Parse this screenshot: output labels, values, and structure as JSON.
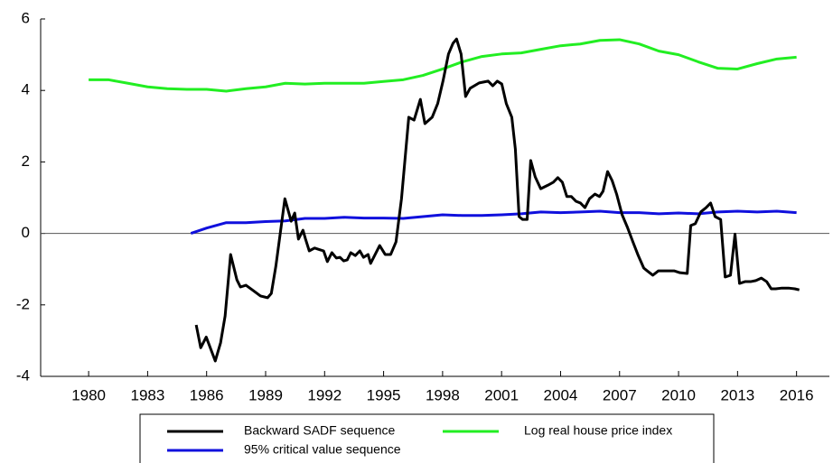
{
  "chart_data": {
    "type": "line",
    "xlim": [
      1977.56,
      2017.67
    ],
    "ylim": [
      -4,
      6
    ],
    "xticks": [
      1980,
      1983,
      1986,
      1989,
      1992,
      1995,
      1998,
      2001,
      2004,
      2007,
      2010,
      2013,
      2016
    ],
    "yticks": [
      -4,
      -2,
      0,
      2,
      4,
      6
    ],
    "zero_line": true,
    "series": [
      {
        "name": "Backward SADF sequence",
        "color": "#000000",
        "x": [
          1985.47,
          1985.7,
          1985.98,
          1986.44,
          1986.71,
          1986.94,
          1987.22,
          1987.54,
          1987.72,
          1988.0,
          1988.37,
          1988.74,
          1989.1,
          1989.29,
          1989.52,
          1989.98,
          1990.3,
          1990.48,
          1990.67,
          1990.9,
          1991.03,
          1991.22,
          1991.49,
          1991.77,
          1991.95,
          1992.14,
          1992.37,
          1992.6,
          1992.78,
          1992.97,
          1993.15,
          1993.33,
          1993.56,
          1993.79,
          1993.98,
          1994.21,
          1994.34,
          1994.57,
          1994.8,
          1995.08,
          1995.36,
          1995.63,
          1995.91,
          1996.28,
          1996.55,
          1996.87,
          1997.1,
          1997.47,
          1997.75,
          1998.02,
          1998.3,
          1998.53,
          1998.71,
          1998.94,
          1999.17,
          1999.4,
          1999.86,
          2000.32,
          2000.55,
          2000.78,
          2001.01,
          2001.24,
          2001.52,
          2001.7,
          2001.89,
          2002.07,
          2002.3,
          2002.48,
          2002.71,
          2002.99,
          2003.36,
          2003.63,
          2003.86,
          2004.09,
          2004.32,
          2004.55,
          2004.78,
          2005.01,
          2005.24,
          2005.47,
          2005.75,
          2005.98,
          2006.16,
          2006.39,
          2006.62,
          2006.85,
          2007.13,
          2007.4,
          2007.68,
          2007.95,
          2008.23,
          2008.41,
          2008.69,
          2008.97,
          2009.24,
          2009.52,
          2009.79,
          2010.07,
          2010.44,
          2010.62,
          2010.85,
          2011.13,
          2011.4,
          2011.63,
          2011.86,
          2012.14,
          2012.37,
          2012.64,
          2012.87,
          2013.1,
          2013.38,
          2013.66,
          2013.93,
          2014.21,
          2014.48,
          2014.71,
          2014.94,
          2015.26,
          2015.59,
          2015.91,
          2016.14
        ],
        "values": [
          -2.56,
          -3.2,
          -2.9,
          -3.57,
          -3.06,
          -2.31,
          -0.59,
          -1.3,
          -1.5,
          -1.45,
          -1.6,
          -1.75,
          -1.8,
          -1.68,
          -0.92,
          0.97,
          0.34,
          0.57,
          -0.16,
          0.09,
          -0.16,
          -0.49,
          -0.41,
          -0.46,
          -0.49,
          -0.79,
          -0.54,
          -0.69,
          -0.67,
          -0.77,
          -0.74,
          -0.54,
          -0.62,
          -0.49,
          -0.67,
          -0.59,
          -0.84,
          -0.59,
          -0.34,
          -0.59,
          -0.59,
          -0.24,
          0.97,
          3.25,
          3.17,
          3.75,
          3.07,
          3.25,
          3.63,
          4.26,
          5.02,
          5.32,
          5.44,
          5.02,
          3.83,
          4.06,
          4.21,
          4.26,
          4.13,
          4.26,
          4.18,
          3.63,
          3.25,
          2.36,
          0.47,
          0.39,
          0.39,
          2.04,
          1.58,
          1.25,
          1.35,
          1.43,
          1.56,
          1.43,
          1.03,
          1.03,
          0.9,
          0.85,
          0.72,
          0.97,
          1.1,
          1.03,
          1.18,
          1.73,
          1.48,
          1.1,
          0.52,
          0.17,
          -0.24,
          -0.62,
          -0.97,
          -1.05,
          -1.17,
          -1.05,
          -1.05,
          -1.05,
          -1.05,
          -1.1,
          -1.12,
          0.22,
          0.27,
          0.6,
          0.72,
          0.85,
          0.47,
          0.39,
          -1.22,
          -1.17,
          -0.02,
          -1.4,
          -1.35,
          -1.35,
          -1.32,
          -1.25,
          -1.35,
          -1.55,
          -1.55,
          -1.53,
          -1.53,
          -1.55,
          -1.58
        ]
      },
      {
        "name": "Log real house price index",
        "color": "#22ee22",
        "x": [
          1980,
          1981,
          1982,
          1983,
          1984,
          1985,
          1986,
          1987,
          1988,
          1989,
          1990,
          1991,
          1992,
          1993,
          1994,
          1995,
          1996,
          1997,
          1998,
          1999,
          2000,
          2001,
          2002,
          2003,
          2004,
          2005,
          2006,
          2007,
          2008,
          2009,
          2010,
          2011,
          2012,
          2013,
          2014,
          2015,
          2016
        ],
        "values": [
          4.3,
          4.3,
          4.2,
          4.1,
          4.05,
          4.03,
          4.03,
          3.98,
          4.05,
          4.1,
          4.2,
          4.18,
          4.2,
          4.2,
          4.2,
          4.25,
          4.3,
          4.42,
          4.6,
          4.8,
          4.95,
          5.02,
          5.05,
          5.15,
          5.25,
          5.3,
          5.4,
          5.42,
          5.3,
          5.1,
          5.0,
          4.8,
          4.62,
          4.6,
          4.75,
          4.88,
          4.93
        ]
      },
      {
        "name": "95% critical value sequence",
        "color": "#1010dd",
        "x": [
          1985.2,
          1986,
          1987,
          1988,
          1989,
          1990,
          1991,
          1992,
          1993,
          1994,
          1995,
          1996,
          1997,
          1998,
          1999,
          2000,
          2001,
          2002,
          2003,
          2004,
          2005,
          2006,
          2007,
          2008,
          2009,
          2010,
          2011,
          2012,
          2013,
          2014,
          2015,
          2016
        ],
        "values": [
          0.0,
          0.15,
          0.3,
          0.3,
          0.33,
          0.35,
          0.42,
          0.42,
          0.45,
          0.43,
          0.43,
          0.42,
          0.47,
          0.52,
          0.5,
          0.5,
          0.52,
          0.55,
          0.6,
          0.58,
          0.6,
          0.62,
          0.58,
          0.58,
          0.55,
          0.57,
          0.55,
          0.6,
          0.62,
          0.6,
          0.62,
          0.58
        ]
      }
    ]
  }
}
